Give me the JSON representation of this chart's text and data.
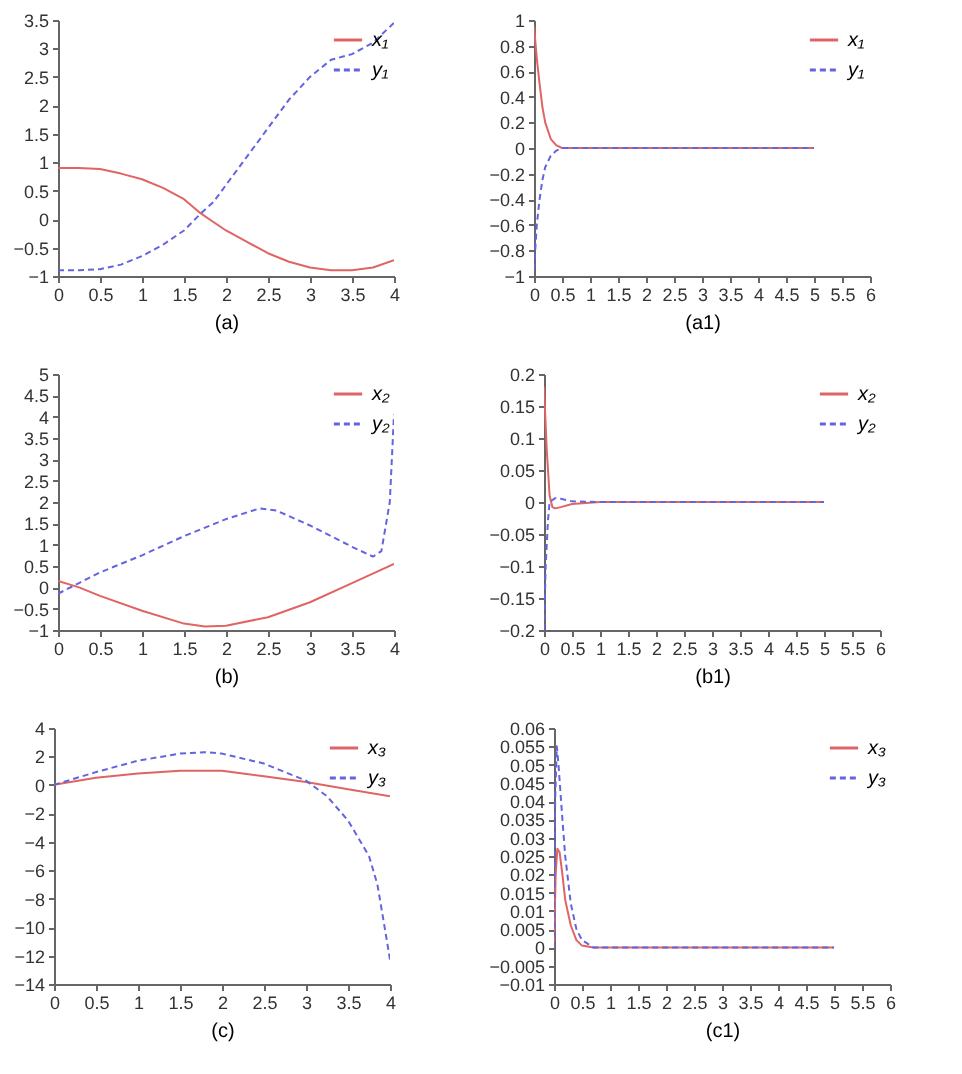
{
  "chart_data": [
    {
      "type": "line",
      "xlabel": "(a)",
      "xlim": [
        0,
        4
      ],
      "xticks": [
        0,
        0.5,
        1,
        1.5,
        2,
        2.5,
        3,
        3.5,
        4
      ],
      "ylim": [
        -1,
        3.5
      ],
      "yticks": [
        -1,
        -0.5,
        0,
        0.5,
        1,
        1.5,
        2,
        2.5,
        3,
        3.5
      ],
      "legend": "top right",
      "series": [
        {
          "name": "x₁",
          "color": "#e06464",
          "line_style": "solid",
          "x": [
            0,
            0.25,
            0.5,
            0.75,
            1,
            1.25,
            1.5,
            1.7,
            1.85,
            2,
            2.25,
            2.5,
            2.75,
            3,
            3.25,
            3.5,
            3.75,
            4
          ],
          "values": [
            0.9,
            0.9,
            0.88,
            0.8,
            0.7,
            0.55,
            0.35,
            0.1,
            -0.05,
            -0.2,
            -0.4,
            -0.6,
            -0.75,
            -0.85,
            -0.9,
            -0.9,
            -0.85,
            -0.72
          ]
        },
        {
          "name": "y₁",
          "color": "#6464e0",
          "line_style": "dashed",
          "x": [
            0,
            0.25,
            0.5,
            0.75,
            1,
            1.25,
            1.5,
            1.7,
            1.85,
            2,
            2.25,
            2.5,
            2.75,
            3,
            3.25,
            3.5,
            3.75,
            4
          ],
          "values": [
            -0.9,
            -0.9,
            -0.88,
            -0.8,
            -0.65,
            -0.45,
            -0.2,
            0.1,
            0.3,
            0.6,
            1.1,
            1.6,
            2.1,
            2.5,
            2.8,
            2.9,
            3.1,
            3.45
          ]
        }
      ]
    },
    {
      "type": "line",
      "xlabel": "(a1)",
      "xlim": [
        0,
        6
      ],
      "xticks": [
        0,
        0.5,
        1,
        1.5,
        2,
        2.5,
        3,
        3.5,
        4,
        4.5,
        5,
        5.5,
        6
      ],
      "ylim": [
        -1,
        1
      ],
      "yticks": [
        -1,
        -0.8,
        -0.6,
        -0.4,
        -0.2,
        0,
        0.2,
        0.4,
        0.6,
        0.8,
        1
      ],
      "legend": "top right",
      "series": [
        {
          "name": "x₁",
          "color": "#e06464",
          "line_style": "solid",
          "x": [
            0,
            0.05,
            0.1,
            0.15,
            0.2,
            0.3,
            0.4,
            0.5,
            1,
            5
          ],
          "values": [
            0.95,
            0.7,
            0.5,
            0.32,
            0.2,
            0.07,
            0.02,
            0,
            0,
            0
          ]
        },
        {
          "name": "y₁",
          "color": "#6464e0",
          "line_style": "dashed",
          "x": [
            0,
            0.05,
            0.1,
            0.15,
            0.2,
            0.3,
            0.4,
            0.5,
            1,
            5
          ],
          "values": [
            -0.95,
            -0.6,
            -0.4,
            -0.25,
            -0.15,
            -0.06,
            -0.02,
            0,
            0,
            0
          ]
        }
      ]
    },
    {
      "type": "line",
      "xlabel": "(b)",
      "xlim": [
        0,
        4
      ],
      "xticks": [
        0,
        0.5,
        1,
        1.5,
        2,
        2.5,
        3,
        3.5,
        4
      ],
      "ylim": [
        -1,
        5
      ],
      "yticks": [
        -1,
        -0.5,
        0,
        0.5,
        1,
        1.5,
        2,
        2.5,
        3,
        3.5,
        4,
        4.5,
        5
      ],
      "legend": "top right",
      "series": [
        {
          "name": "x₂",
          "color": "#e06464",
          "line_style": "solid",
          "x": [
            0,
            0.25,
            0.5,
            1,
            1.5,
            1.75,
            2,
            2.5,
            3,
            3.5,
            4
          ],
          "values": [
            0.15,
            0,
            -0.2,
            -0.55,
            -0.85,
            -0.92,
            -0.9,
            -0.7,
            -0.35,
            0.1,
            0.55
          ]
        },
        {
          "name": "y₂",
          "color": "#6464e0",
          "line_style": "dashed",
          "x": [
            0,
            0.25,
            0.5,
            1,
            1.5,
            2,
            2.4,
            2.6,
            3,
            3.5,
            3.75,
            3.85,
            3.95,
            4
          ],
          "values": [
            -0.15,
            0.1,
            0.35,
            0.75,
            1.2,
            1.6,
            1.85,
            1.8,
            1.45,
            0.95,
            0.72,
            0.85,
            2,
            4.05
          ]
        }
      ]
    },
    {
      "type": "line",
      "xlabel": "(b1)",
      "xlim": [
        0,
        6
      ],
      "xticks": [
        0,
        0.5,
        1,
        1.5,
        2,
        2.5,
        3,
        3.5,
        4,
        4.5,
        5,
        5.5,
        6
      ],
      "ylim": [
        -0.2,
        0.2
      ],
      "yticks": [
        -0.2,
        -0.15,
        -0.1,
        -0.05,
        0,
        0.05,
        0.1,
        0.15,
        0.2
      ],
      "legend": "top right",
      "series": [
        {
          "name": "x₂",
          "color": "#e06464",
          "line_style": "solid",
          "x": [
            0,
            0.05,
            0.1,
            0.15,
            0.2,
            0.3,
            0.5,
            1,
            5
          ],
          "values": [
            0.18,
            0.08,
            0.01,
            -0.008,
            -0.01,
            -0.008,
            -0.003,
            0,
            0
          ]
        },
        {
          "name": "y₂",
          "color": "#6464e0",
          "line_style": "dashed",
          "x": [
            0,
            0.03,
            0.07,
            0.1,
            0.2,
            0.3,
            0.5,
            1,
            5
          ],
          "values": [
            -0.2,
            -0.1,
            -0.03,
            0,
            0.006,
            0.005,
            0.001,
            0,
            0
          ]
        }
      ]
    },
    {
      "type": "line",
      "xlabel": "(c)",
      "xlim": [
        0,
        4
      ],
      "xticks": [
        0,
        0.5,
        1,
        1.5,
        2,
        2.5,
        3,
        3.5,
        4
      ],
      "ylim": [
        -14,
        4
      ],
      "yticks": [
        -14,
        -12,
        -10,
        -8,
        -6,
        -4,
        -2,
        0,
        2,
        4
      ],
      "legend": "top right",
      "series": [
        {
          "name": "x₃",
          "color": "#e06464",
          "line_style": "solid",
          "x": [
            0,
            0.5,
            1,
            1.5,
            2,
            2.5,
            3,
            3.5,
            4
          ],
          "values": [
            0,
            0.5,
            0.8,
            1,
            1,
            0.6,
            0.2,
            -0.3,
            -0.8
          ]
        },
        {
          "name": "y₃",
          "color": "#6464e0",
          "line_style": "dashed",
          "x": [
            0,
            0.5,
            1,
            1.5,
            1.8,
            2,
            2.5,
            3,
            3.25,
            3.5,
            3.75,
            3.85,
            3.95,
            4
          ],
          "values": [
            0,
            0.9,
            1.7,
            2.2,
            2.3,
            2.2,
            1.5,
            0.3,
            -0.8,
            -2.5,
            -5,
            -7,
            -10.5,
            -12.3
          ]
        }
      ]
    },
    {
      "type": "line",
      "xlabel": "(c1)",
      "xlim": [
        0,
        6
      ],
      "xticks": [
        0,
        0.5,
        1,
        1.5,
        2,
        2.5,
        3,
        3.5,
        4,
        4.5,
        5,
        5.5,
        6
      ],
      "ylim": [
        -0.01,
        0.06
      ],
      "yticks": [
        -0.01,
        -0.005,
        0,
        0.005,
        0.01,
        0.015,
        0.02,
        0.025,
        0.03,
        0.035,
        0.04,
        0.045,
        0.05,
        0.055,
        0.06
      ],
      "legend": "top right",
      "series": [
        {
          "name": "x₃",
          "color": "#e06464",
          "line_style": "solid",
          "x": [
            0,
            0.03,
            0.06,
            0.1,
            0.15,
            0.2,
            0.3,
            0.4,
            0.5,
            0.7,
            5
          ],
          "values": [
            0,
            0.02,
            0.027,
            0.026,
            0.02,
            0.013,
            0.006,
            0.002,
            0.0005,
            0,
            0
          ]
        },
        {
          "name": "y₃",
          "color": "#6464e0",
          "line_style": "dashed",
          "x": [
            0,
            0.02,
            0.05,
            0.08,
            0.15,
            0.2,
            0.3,
            0.4,
            0.5,
            0.7,
            5
          ],
          "values": [
            0,
            0.04,
            0.055,
            0.05,
            0.035,
            0.025,
            0.012,
            0.005,
            0.002,
            0,
            0
          ]
        }
      ]
    }
  ]
}
